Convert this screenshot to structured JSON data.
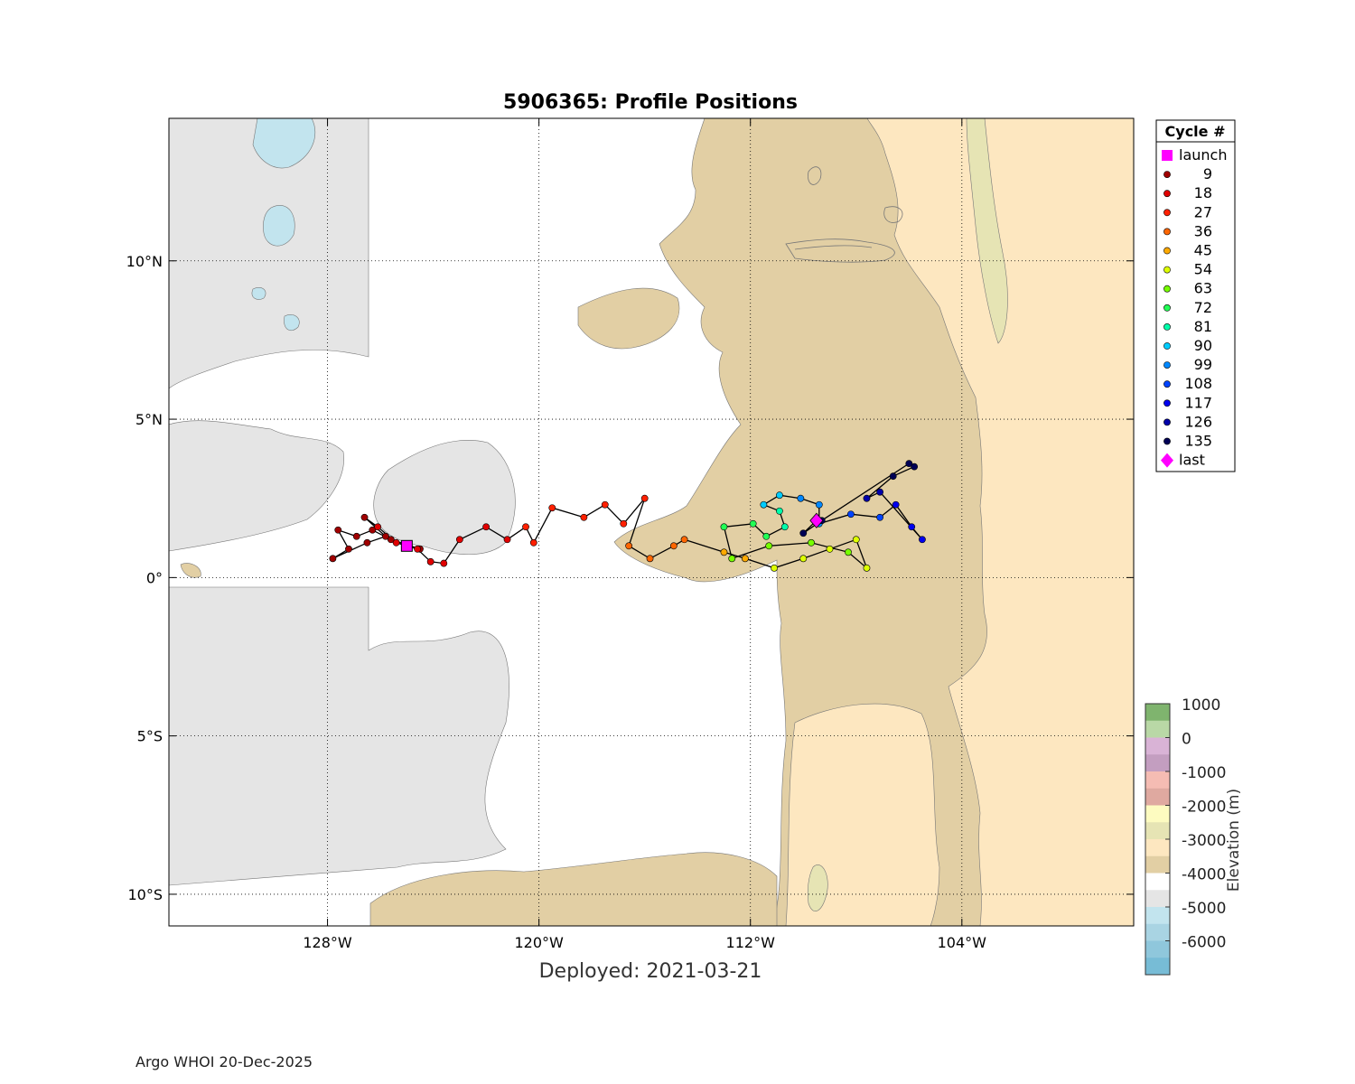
{
  "title": "5906365: Profile Positions",
  "subtitle": "Deployed: 2021-03-21",
  "footer": "Argo WHOI 20-Dec-2025",
  "colorbar": {
    "label": "Elevation (m)",
    "ticks": [
      "1000",
      "0",
      "-1000",
      "-2000",
      "-3000",
      "-4000",
      "-5000",
      "-6000"
    ],
    "colors": [
      "#7fb46e",
      "#b9d8a6",
      "#d9b3d6",
      "#c39ec0",
      "#f5bcb3",
      "#dfa9a0",
      "#fdfbc0",
      "#e6e4b4",
      "#fde7c0",
      "#e2cfa4",
      "#ffffff",
      "#e5e5e5",
      "#c2e4ee",
      "#a9d4e3",
      "#8fc7dc",
      "#77bcd6"
    ]
  },
  "legend": {
    "title": "Cycle #",
    "items": [
      {
        "label": "launch",
        "color": "#ff00ff",
        "shape": "square"
      },
      {
        "label": "9",
        "color": "#a00000",
        "shape": "dot"
      },
      {
        "label": "18",
        "color": "#e00000",
        "shape": "dot"
      },
      {
        "label": "27",
        "color": "#ff2000",
        "shape": "dot"
      },
      {
        "label": "36",
        "color": "#ff6600",
        "shape": "dot"
      },
      {
        "label": "45",
        "color": "#ffaa00",
        "shape": "dot"
      },
      {
        "label": "54",
        "color": "#ddff00",
        "shape": "dot"
      },
      {
        "label": "63",
        "color": "#77ff00",
        "shape": "dot"
      },
      {
        "label": "72",
        "color": "#22ff55",
        "shape": "dot"
      },
      {
        "label": "81",
        "color": "#00ffaa",
        "shape": "dot"
      },
      {
        "label": "90",
        "color": "#00ccff",
        "shape": "dot"
      },
      {
        "label": "99",
        "color": "#0088ff",
        "shape": "dot"
      },
      {
        "label": "108",
        "color": "#0044ff",
        "shape": "dot"
      },
      {
        "label": "117",
        "color": "#0000ee",
        "shape": "dot"
      },
      {
        "label": "126",
        "color": "#0000aa",
        "shape": "dot"
      },
      {
        "label": "135",
        "color": "#000055",
        "shape": "dot"
      },
      {
        "label": "last",
        "color": "#ff00ff",
        "shape": "diamond"
      }
    ]
  },
  "map": {
    "lon_range": [
      -134,
      -97.5
    ],
    "lat_range": [
      -11,
      14.5
    ],
    "lon_ticks": [
      {
        "value": -128,
        "label": "128°W"
      },
      {
        "value": -120,
        "label": "120°W"
      },
      {
        "value": -112,
        "label": "112°W"
      },
      {
        "value": -104,
        "label": "104°W"
      }
    ],
    "lat_ticks": [
      {
        "value": 10,
        "label": "10°N"
      },
      {
        "value": 5,
        "label": "5°N"
      },
      {
        "value": 0,
        "label": "0°"
      },
      {
        "value": -5,
        "label": "5°S"
      },
      {
        "value": -10,
        "label": "10°S"
      }
    ],
    "grid": true
  },
  "chart_data": {
    "type": "scatter",
    "track": [
      {
        "lon": -125.0,
        "lat": 1.0,
        "c": "#ff00ff"
      },
      {
        "lon": -124.5,
        "lat": 0.9,
        "c": "#a00000"
      },
      {
        "lon": -125.6,
        "lat": 1.2,
        "c": "#a00000"
      },
      {
        "lon": -126.3,
        "lat": 1.5,
        "c": "#a00000"
      },
      {
        "lon": -126.9,
        "lat": 1.3,
        "c": "#a00000"
      },
      {
        "lon": -127.6,
        "lat": 1.5,
        "c": "#a00000"
      },
      {
        "lon": -127.2,
        "lat": 0.9,
        "c": "#a00000"
      },
      {
        "lon": -127.8,
        "lat": 0.6,
        "c": "#a00000"
      },
      {
        "lon": -126.5,
        "lat": 1.1,
        "c": "#a00000"
      },
      {
        "lon": -125.8,
        "lat": 1.3,
        "c": "#a00000"
      },
      {
        "lon": -126.6,
        "lat": 1.9,
        "c": "#a00000"
      },
      {
        "lon": -126.1,
        "lat": 1.6,
        "c": "#e00000"
      },
      {
        "lon": -125.4,
        "lat": 1.1,
        "c": "#e00000"
      },
      {
        "lon": -124.6,
        "lat": 0.9,
        "c": "#e00000"
      },
      {
        "lon": -124.1,
        "lat": 0.5,
        "c": "#e00000"
      },
      {
        "lon": -123.6,
        "lat": 0.45,
        "c": "#e00000"
      },
      {
        "lon": -123.0,
        "lat": 1.2,
        "c": "#e00000"
      },
      {
        "lon": -122.0,
        "lat": 1.6,
        "c": "#e00000"
      },
      {
        "lon": -121.2,
        "lat": 1.2,
        "c": "#e00000"
      },
      {
        "lon": -120.5,
        "lat": 1.6,
        "c": "#ff2000"
      },
      {
        "lon": -120.2,
        "lat": 1.1,
        "c": "#ff2000"
      },
      {
        "lon": -119.5,
        "lat": 2.2,
        "c": "#ff2000"
      },
      {
        "lon": -118.3,
        "lat": 1.9,
        "c": "#ff2000"
      },
      {
        "lon": -117.5,
        "lat": 2.3,
        "c": "#ff2000"
      },
      {
        "lon": -116.8,
        "lat": 1.7,
        "c": "#ff2000"
      },
      {
        "lon": -116.0,
        "lat": 2.5,
        "c": "#ff2000"
      },
      {
        "lon": -116.6,
        "lat": 1.0,
        "c": "#ff6600"
      },
      {
        "lon": -115.8,
        "lat": 0.6,
        "c": "#ff6600"
      },
      {
        "lon": -114.9,
        "lat": 1.0,
        "c": "#ff6600"
      },
      {
        "lon": -114.5,
        "lat": 1.2,
        "c": "#ff6600"
      },
      {
        "lon": -113.0,
        "lat": 0.8,
        "c": "#ffaa00"
      },
      {
        "lon": -112.2,
        "lat": 0.6,
        "c": "#ffaa00"
      },
      {
        "lon": -111.1,
        "lat": 0.3,
        "c": "#ddff00"
      },
      {
        "lon": -110.0,
        "lat": 0.6,
        "c": "#ddff00"
      },
      {
        "lon": -109.0,
        "lat": 0.9,
        "c": "#ddff00"
      },
      {
        "lon": -108.0,
        "lat": 1.2,
        "c": "#ddff00"
      },
      {
        "lon": -107.6,
        "lat": 0.3,
        "c": "#ddff00"
      },
      {
        "lon": -108.3,
        "lat": 0.8,
        "c": "#77ff00"
      },
      {
        "lon": -109.7,
        "lat": 1.1,
        "c": "#77ff00"
      },
      {
        "lon": -111.3,
        "lat": 1.0,
        "c": "#77ff00"
      },
      {
        "lon": -112.7,
        "lat": 0.6,
        "c": "#77ff00"
      },
      {
        "lon": -113.0,
        "lat": 1.6,
        "c": "#22ff55"
      },
      {
        "lon": -111.9,
        "lat": 1.7,
        "c": "#22ff55"
      },
      {
        "lon": -111.4,
        "lat": 1.3,
        "c": "#22ff55"
      },
      {
        "lon": -110.7,
        "lat": 1.6,
        "c": "#00ffaa"
      },
      {
        "lon": -110.9,
        "lat": 2.1,
        "c": "#00ffaa"
      },
      {
        "lon": -111.5,
        "lat": 2.3,
        "c": "#00ccff"
      },
      {
        "lon": -110.9,
        "lat": 2.6,
        "c": "#00ccff"
      },
      {
        "lon": -110.1,
        "lat": 2.5,
        "c": "#0088ff"
      },
      {
        "lon": -109.4,
        "lat": 2.3,
        "c": "#0088ff"
      },
      {
        "lon": -109.4,
        "lat": 1.7,
        "c": "#0088ff"
      },
      {
        "lon": -108.2,
        "lat": 2.0,
        "c": "#0044ff"
      },
      {
        "lon": -107.1,
        "lat": 1.9,
        "c": "#0044ff"
      },
      {
        "lon": -106.5,
        "lat": 2.3,
        "c": "#0000ee"
      },
      {
        "lon": -105.9,
        "lat": 1.6,
        "c": "#0000ee"
      },
      {
        "lon": -105.5,
        "lat": 1.2,
        "c": "#0000ee"
      },
      {
        "lon": -107.1,
        "lat": 2.7,
        "c": "#0000aa"
      },
      {
        "lon": -107.6,
        "lat": 2.5,
        "c": "#0000aa"
      },
      {
        "lon": -106.6,
        "lat": 3.2,
        "c": "#000055"
      },
      {
        "lon": -105.8,
        "lat": 3.5,
        "c": "#000055"
      },
      {
        "lon": -106.0,
        "lat": 3.6,
        "c": "#000055"
      },
      {
        "lon": -109.3,
        "lat": 1.8,
        "c": "#000055"
      },
      {
        "lon": -110.0,
        "lat": 1.4,
        "c": "#000055"
      },
      {
        "lon": -109.5,
        "lat": 1.8,
        "c": "#ff00ff"
      }
    ]
  }
}
